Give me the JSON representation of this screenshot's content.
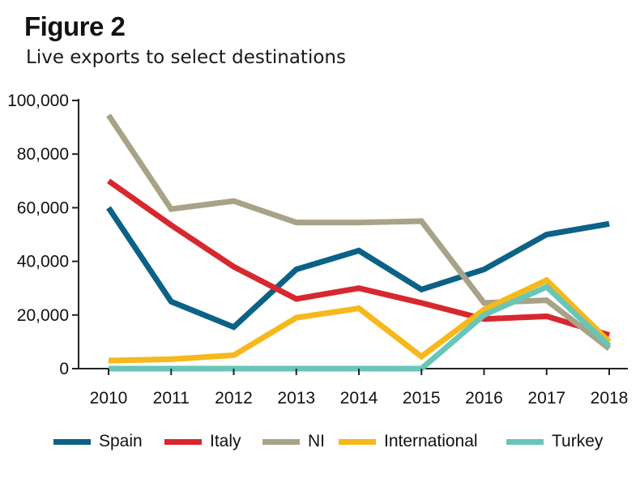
{
  "figure_label": "Figure 2",
  "chart_data": {
    "type": "line",
    "title": "Live exports to select destinations",
    "xlabel": "",
    "ylabel": "",
    "categories": [
      "2010",
      "2011",
      "2012",
      "2013",
      "2014",
      "2015",
      "2016",
      "2017",
      "2018"
    ],
    "ylim": [
      0,
      100000
    ],
    "yticks": [
      0,
      20000,
      40000,
      60000,
      80000,
      100000
    ],
    "ytick_labels": [
      "0",
      "20,000",
      "40,000",
      "60,000",
      "80,000",
      "100,000"
    ],
    "grid": false,
    "legend_position": "bottom",
    "series": [
      {
        "name": "Spain",
        "color": "#0c6186",
        "values": [
          60000,
          25000,
          15500,
          37000,
          44000,
          29500,
          37000,
          50000,
          54000
        ]
      },
      {
        "name": "Italy",
        "color": "#d7282f",
        "values": [
          70000,
          53500,
          38000,
          26000,
          30000,
          24500,
          18500,
          19500,
          12500
        ]
      },
      {
        "name": "NI",
        "color": "#a8a387",
        "values": [
          94500,
          59500,
          62500,
          54500,
          54500,
          55000,
          24500,
          25500,
          7500
        ]
      },
      {
        "name": "International",
        "color": "#f6b81a",
        "values": [
          3000,
          3500,
          5000,
          19000,
          22500,
          4500,
          22000,
          33000,
          10000
        ]
      },
      {
        "name": "Turkey",
        "color": "#68c6b8",
        "values": [
          0,
          0,
          0,
          0,
          0,
          0,
          20000,
          30500,
          8500
        ]
      }
    ]
  }
}
